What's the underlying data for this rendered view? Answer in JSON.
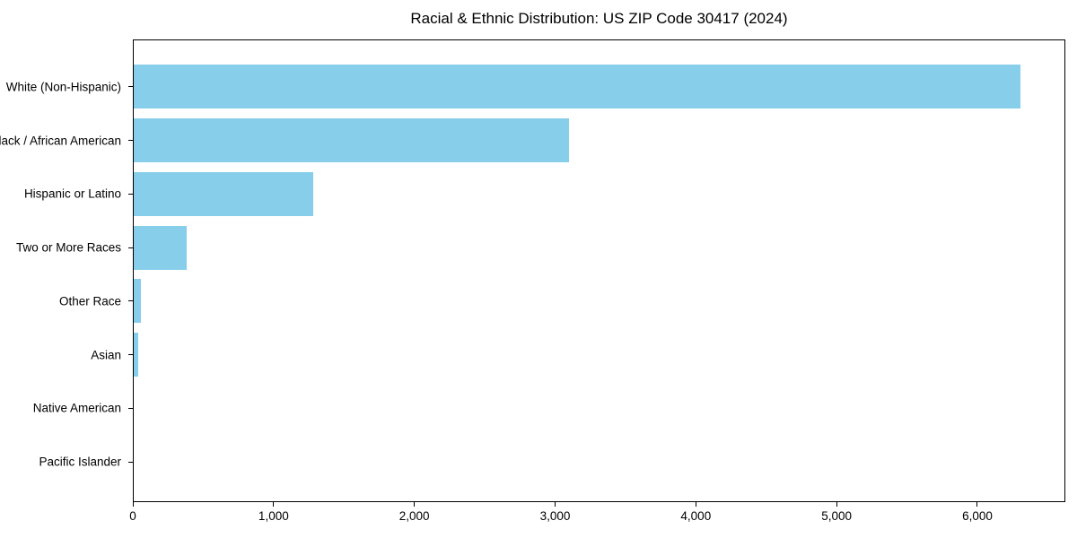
{
  "chart_data": {
    "type": "bar",
    "orientation": "horizontal",
    "title": "Racial & Ethnic Distribution: US ZIP Code 30417 (2024)",
    "categories": [
      "White (Non-Hispanic)",
      "Black / African American",
      "Hispanic or Latino",
      "Two or More Races",
      "Other Race",
      "Asian",
      "Native American",
      "Pacific Islander"
    ],
    "values": [
      6310,
      3100,
      1280,
      380,
      50,
      30,
      0,
      0
    ],
    "xlabel": "",
    "ylabel": "",
    "xlim": [
      0,
      6625
    ],
    "xticks": [
      0,
      1000,
      2000,
      3000,
      4000,
      5000,
      6000
    ],
    "xtick_labels": [
      "0",
      "1,000",
      "2,000",
      "3,000",
      "4,000",
      "5,000",
      "6,000"
    ],
    "grid": false,
    "legend": null,
    "colors": {
      "bar": "#87CEEB",
      "axis": "#000000",
      "text": "#000000",
      "background": "#FFFFFF"
    }
  }
}
